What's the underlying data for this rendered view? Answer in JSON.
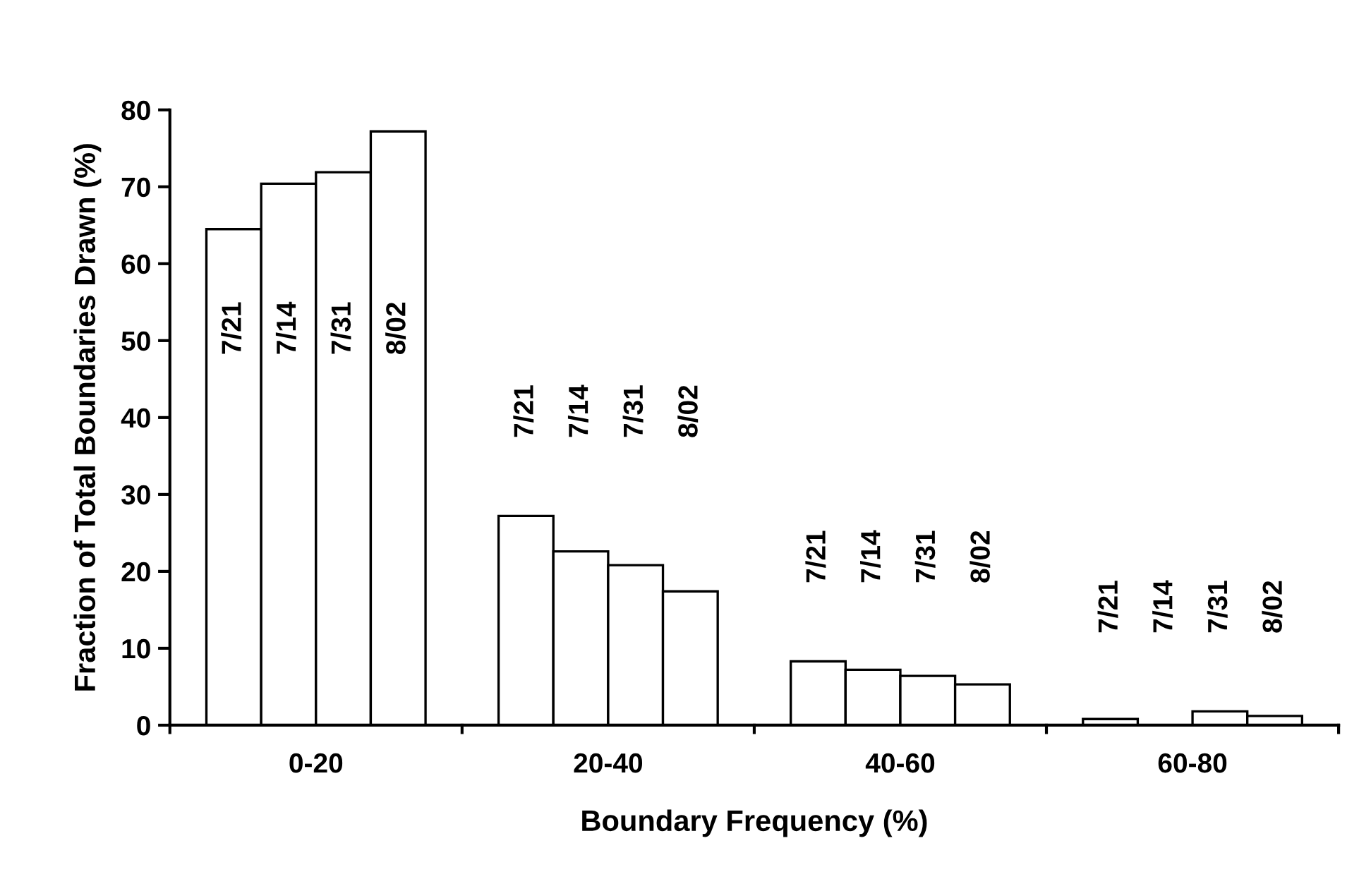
{
  "chart_data": {
    "type": "bar",
    "xlabel": "Boundary Frequency (%)",
    "ylabel": "Fraction of Total Boundaries Drawn (%)",
    "categories": [
      "0-20",
      "20-40",
      "40-60",
      "60-80"
    ],
    "series": [
      {
        "name": "7/21",
        "color": "#ffffff",
        "values": [
          64.5,
          27.2,
          8.3,
          0.8
        ]
      },
      {
        "name": "7/14",
        "color": "#ffffff",
        "values": [
          70.4,
          22.6,
          7.2,
          null
        ]
      },
      {
        "name": "7/31",
        "color": "#ffffff",
        "values": [
          71.9,
          20.8,
          6.4,
          1.8
        ]
      },
      {
        "name": "8/02",
        "color": "#ffffff",
        "values": [
          77.2,
          17.4,
          5.3,
          1.2
        ]
      }
    ],
    "ylim": [
      0,
      80
    ],
    "yticks": [
      0,
      10,
      20,
      30,
      40,
      50,
      60,
      70,
      80
    ],
    "grid": false,
    "legend": false
  }
}
